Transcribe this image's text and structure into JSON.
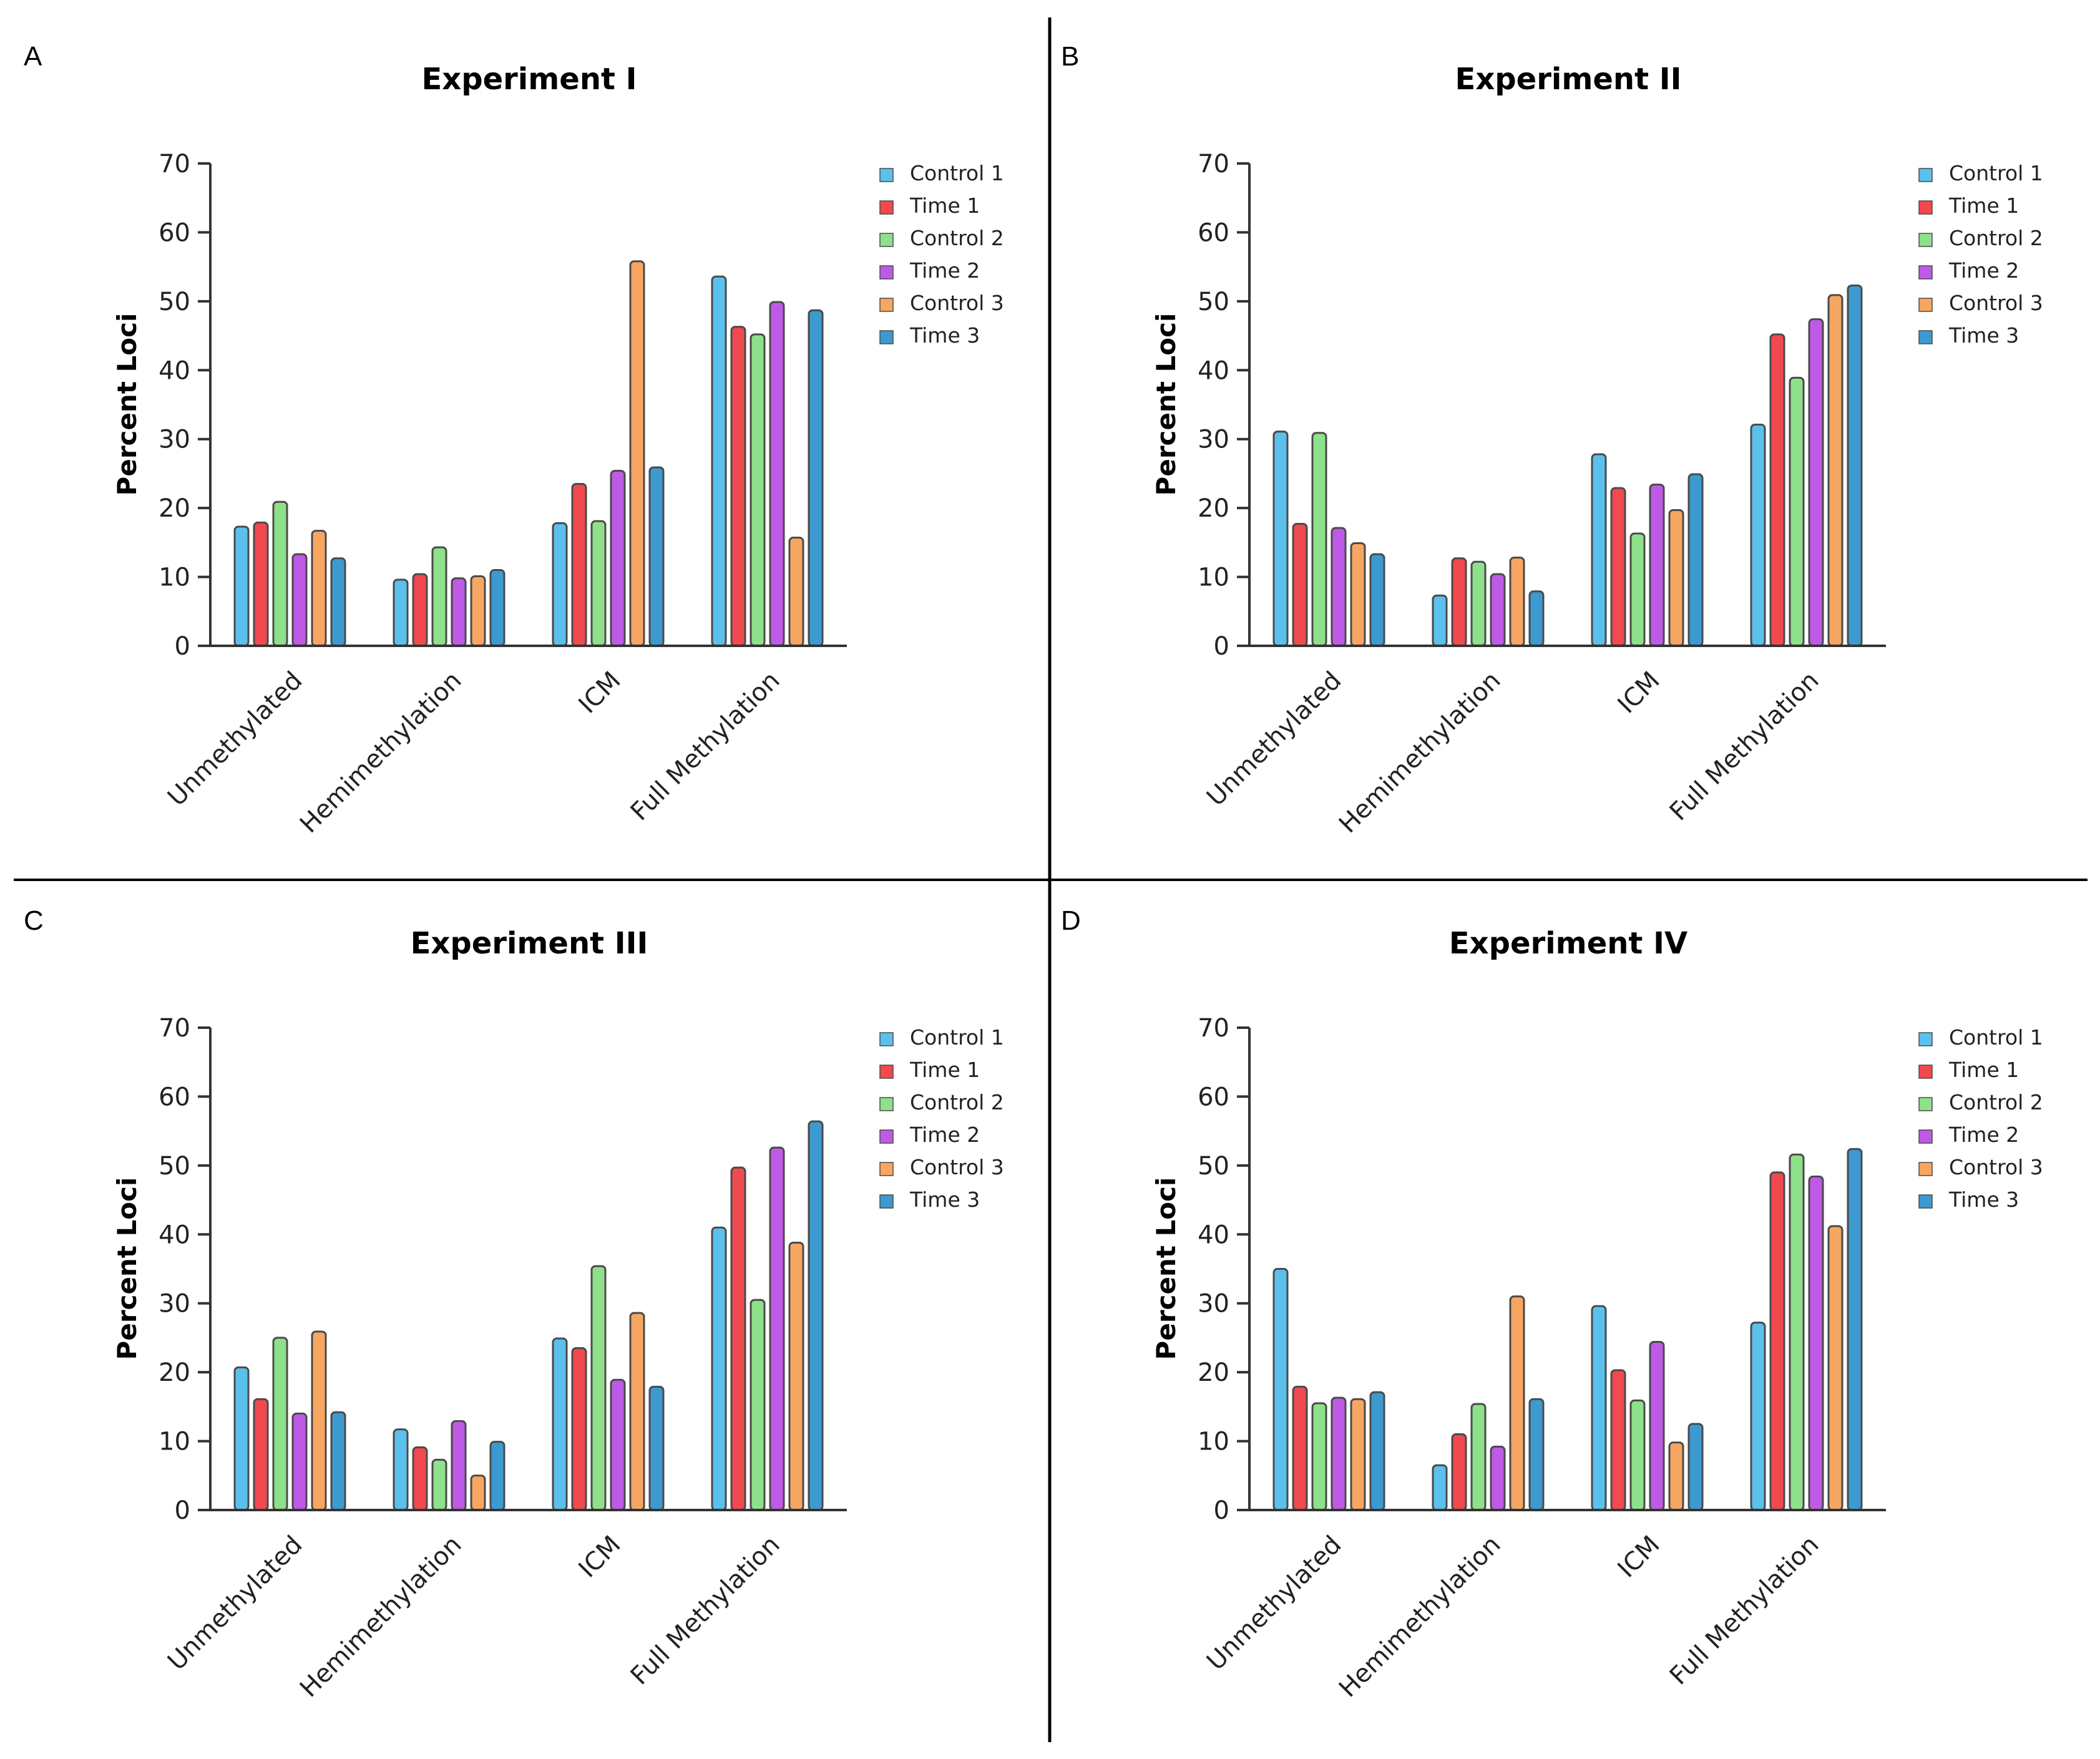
{
  "figure": {
    "panel_letters": [
      "A",
      "B",
      "C",
      "D"
    ]
  },
  "series_colors": [
    "#5bc0eb",
    "#f0494f",
    "#8fe08a",
    "#bf5ae6",
    "#f7a661",
    "#3d9ad1"
  ],
  "bar_stroke": "#4a4a4a",
  "chart_data": [
    {
      "type": "bar",
      "title": "Experiment I",
      "xlabel": "",
      "ylabel": "Percent Loci",
      "ylim": [
        0,
        70
      ],
      "yticks": [
        "0",
        "10",
        "20",
        "30",
        "40",
        "50",
        "60",
        "70"
      ],
      "legend_position": "top-right",
      "categories": [
        "Unmethylated",
        "Hemimethylation",
        "ICM",
        "Full Methylation"
      ],
      "series": [
        {
          "name": "Control 1",
          "values": [
            17.3,
            9.6,
            17.8,
            53.6
          ]
        },
        {
          "name": "Time 1",
          "values": [
            17.9,
            10.4,
            23.5,
            46.3
          ]
        },
        {
          "name": "Control 2",
          "values": [
            20.9,
            14.3,
            18.1,
            45.2
          ]
        },
        {
          "name": "Time 2",
          "values": [
            13.3,
            9.8,
            25.4,
            49.9
          ]
        },
        {
          "name": "Control 3",
          "values": [
            16.7,
            10.1,
            55.8,
            15.7
          ]
        },
        {
          "name": "Time 3",
          "values": [
            12.7,
            11.0,
            25.9,
            48.7
          ]
        }
      ]
    },
    {
      "type": "bar",
      "title": "Experiment II",
      "xlabel": "",
      "ylabel": "Percent Loci",
      "ylim": [
        0,
        70
      ],
      "yticks": [
        "0",
        "10",
        "20",
        "30",
        "40",
        "50",
        "60",
        "70"
      ],
      "legend_position": "top-right",
      "categories": [
        "Unmethylated",
        "Hemimethylation",
        "ICM",
        "Full Methylation"
      ],
      "series": [
        {
          "name": "Control 1",
          "values": [
            31.1,
            7.3,
            27.8,
            32.1
          ]
        },
        {
          "name": "Time 1",
          "values": [
            17.7,
            12.7,
            22.9,
            45.2
          ]
        },
        {
          "name": "Control 2",
          "values": [
            30.9,
            12.2,
            16.3,
            38.9
          ]
        },
        {
          "name": "Time 2",
          "values": [
            17.1,
            10.4,
            23.4,
            47.4
          ]
        },
        {
          "name": "Control 3",
          "values": [
            14.9,
            12.8,
            19.7,
            50.9
          ]
        },
        {
          "name": "Time 3",
          "values": [
            13.3,
            7.9,
            24.9,
            52.3
          ]
        }
      ]
    },
    {
      "type": "bar",
      "title": "Experiment III",
      "xlabel": "",
      "ylabel": "Percent Loci",
      "ylim": [
        0,
        70
      ],
      "yticks": [
        "0",
        "10",
        "20",
        "30",
        "40",
        "50",
        "60",
        "70"
      ],
      "legend_position": "top-right",
      "categories": [
        "Unmethylated",
        "Hemimethylation",
        "ICM",
        "Full Methylation"
      ],
      "series": [
        {
          "name": "Control 1",
          "values": [
            20.7,
            11.7,
            24.9,
            41.0
          ]
        },
        {
          "name": "Time 1",
          "values": [
            16.1,
            9.1,
            23.5,
            49.7
          ]
        },
        {
          "name": "Control 2",
          "values": [
            25.0,
            7.3,
            35.4,
            30.5
          ]
        },
        {
          "name": "Time 2",
          "values": [
            14.0,
            12.9,
            18.9,
            52.6
          ]
        },
        {
          "name": "Control 3",
          "values": [
            25.9,
            5.0,
            28.6,
            38.8
          ]
        },
        {
          "name": "Time 3",
          "values": [
            14.2,
            9.9,
            17.9,
            56.4
          ]
        }
      ]
    },
    {
      "type": "bar",
      "title": "Experiment IV",
      "xlabel": "",
      "ylabel": "Percent Loci",
      "ylim": [
        0,
        70
      ],
      "yticks": [
        "0",
        "10",
        "20",
        "30",
        "40",
        "50",
        "60",
        "70"
      ],
      "legend_position": "top-right",
      "categories": [
        "Unmethylated",
        "Hemimethylation",
        "ICM",
        "Full Methylation"
      ],
      "series": [
        {
          "name": "Control 1",
          "values": [
            35.0,
            6.5,
            29.6,
            27.2
          ]
        },
        {
          "name": "Time 1",
          "values": [
            17.9,
            11.0,
            20.3,
            49.0
          ]
        },
        {
          "name": "Control 2",
          "values": [
            15.5,
            15.4,
            15.9,
            51.6
          ]
        },
        {
          "name": "Time 2",
          "values": [
            16.3,
            9.2,
            24.4,
            48.4
          ]
        },
        {
          "name": "Control 3",
          "values": [
            16.1,
            31.0,
            9.8,
            41.2
          ]
        },
        {
          "name": "Time 3",
          "values": [
            17.1,
            16.1,
            12.5,
            52.4
          ]
        }
      ]
    }
  ]
}
